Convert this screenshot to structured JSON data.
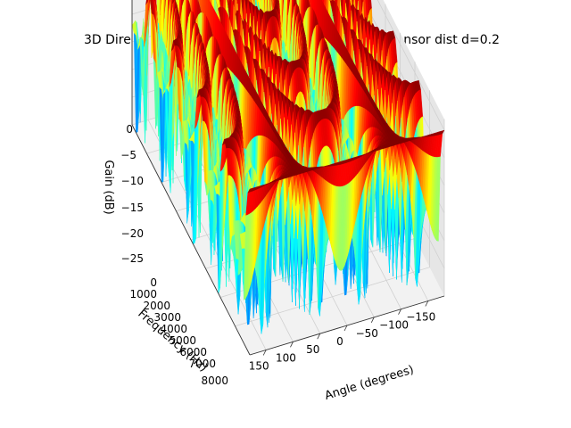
{
  "chart_data": {
    "type": "surface3d",
    "title": "3D Directivity Pattern, setting 2,  Broadside Arraysensor dist d=0.2",
    "xlabel": "Angle (degrees)",
    "ylabel": "Frequency (Hz)",
    "zlabel": "Gain (dB)",
    "x_ticks": [
      "150",
      "100",
      "50",
      "0",
      "−50",
      "−100",
      "−150"
    ],
    "y_ticks": [
      "0",
      "1000",
      "2000",
      "3000",
      "4000",
      "5000",
      "6000",
      "7000",
      "8000"
    ],
    "z_ticks": [
      "0",
      "−5",
      "−10",
      "−15",
      "−20",
      "−25"
    ],
    "xlim": [
      -180,
      180
    ],
    "ylim": [
      0,
      8000
    ],
    "zlim": [
      -30,
      0
    ],
    "colormap": "jet",
    "sensor_distance": 0.2,
    "grid": true
  }
}
